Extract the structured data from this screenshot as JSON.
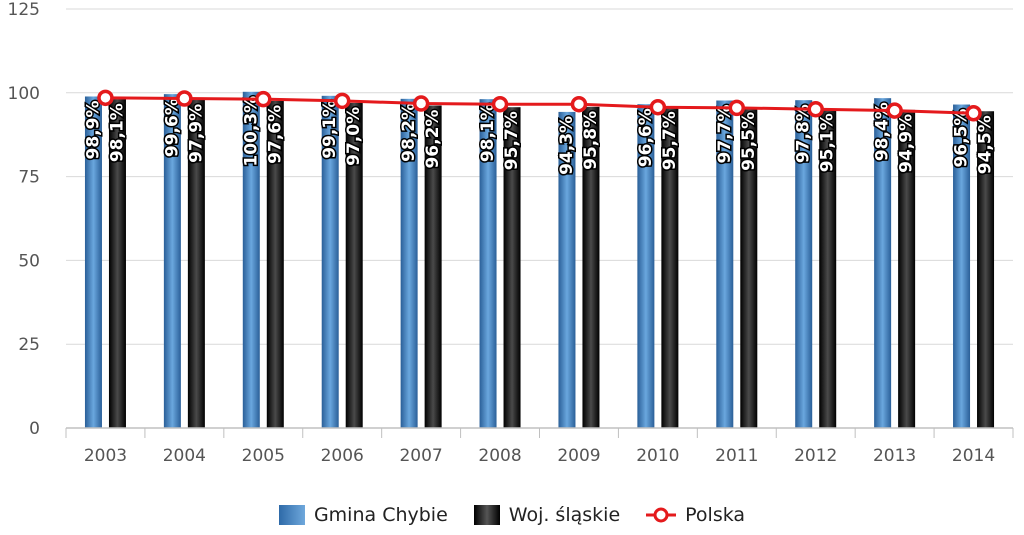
{
  "chart_data": {
    "type": "bar",
    "title": "",
    "xlabel": "",
    "ylabel": "",
    "categories": [
      "2003",
      "2004",
      "2005",
      "2006",
      "2007",
      "2008",
      "2009",
      "2010",
      "2011",
      "2012",
      "2013",
      "2014"
    ],
    "ylim": [
      0,
      125
    ],
    "yticks": [
      0,
      25,
      50,
      75,
      100,
      125
    ],
    "grid": true,
    "legend_position": "bottom",
    "series": [
      {
        "name": "Gmina Chybie",
        "kind": "bar",
        "color": "#3b7fc4",
        "values": [
          98.9,
          99.6,
          100.3,
          99.1,
          98.2,
          98.1,
          94.3,
          96.6,
          97.7,
          97.8,
          98.4,
          96.5
        ],
        "labels": [
          "98,9%",
          "99,6%",
          "100,3%",
          "99,1%",
          "98,2%",
          "98,1%",
          "94,3%",
          "96,6%",
          "97,7%",
          "97,8%",
          "98,4%",
          "96,5%"
        ]
      },
      {
        "name": "Woj. śląskie",
        "kind": "bar",
        "color": "#111111",
        "values": [
          98.1,
          97.9,
          97.6,
          97.0,
          96.2,
          95.7,
          95.8,
          95.7,
          95.5,
          95.1,
          94.9,
          94.5
        ],
        "labels": [
          "98,1%",
          "97,9%",
          "97,6%",
          "97,0%",
          "96,2%",
          "95,7%",
          "95,8%",
          "95,7%",
          "95,5%",
          "95,1%",
          "94,9%",
          "94,5%"
        ]
      },
      {
        "name": "Polska",
        "kind": "line",
        "color": "#e41a1c",
        "values": [
          98.5,
          98.3,
          98.1,
          97.6,
          96.8,
          96.6,
          96.6,
          95.7,
          95.5,
          95.1,
          94.7,
          93.9
        ]
      }
    ]
  }
}
